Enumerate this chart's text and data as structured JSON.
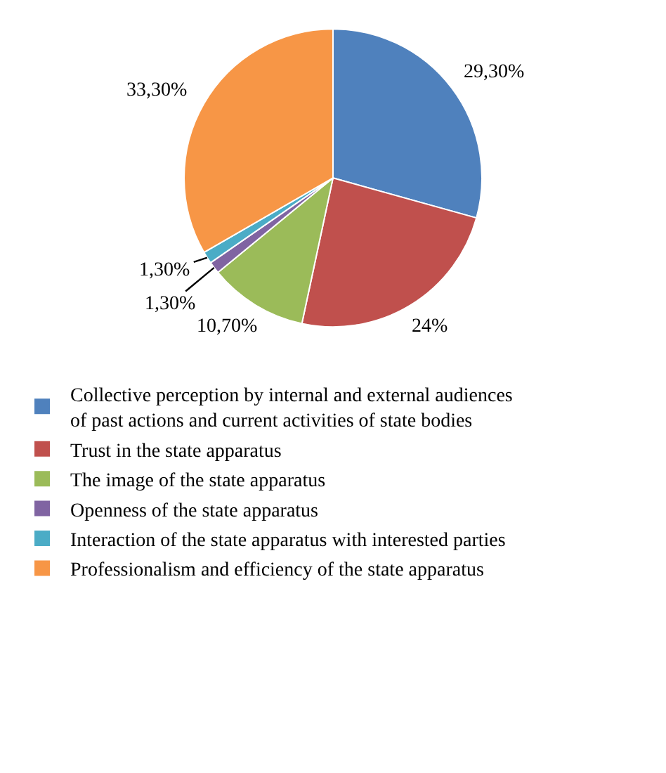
{
  "chart_data": {
    "type": "pie",
    "categories": [
      "Collective perception by internal and external audiences of past actions and current activities of state bodies",
      "Trust in the state apparatus",
      "The image of the state apparatus",
      "Openness of the state apparatus",
      "Interaction of the state apparatus with interested parties",
      "Professionalism and efficiency of the state apparatus"
    ],
    "values": [
      29.3,
      24,
      10.7,
      1.3,
      1.3,
      33.3
    ],
    "value_labels": [
      "29,30%",
      "24%",
      "10,70%",
      "1,30%",
      "1,30%",
      "33,30%"
    ],
    "colors": [
      "#4f81bd",
      "#c0504d",
      "#9bbb59",
      "#8064a2",
      "#4bacc6",
      "#f79646"
    ],
    "legend": "bottom"
  }
}
